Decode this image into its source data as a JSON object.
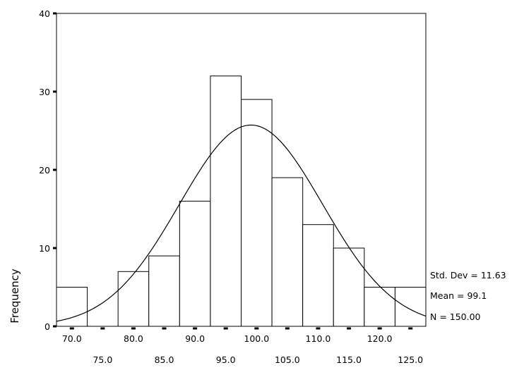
{
  "chart_data": {
    "type": "bar",
    "subtype": "histogram-with-normal-curve",
    "title": "",
    "xlabel": "",
    "ylabel": "Frequency",
    "ylim": [
      0,
      40
    ],
    "xlim": [
      67.5,
      127.5
    ],
    "bin_width": 5,
    "y_ticks": [
      "0",
      "10",
      "20",
      "30",
      "40"
    ],
    "x_ticks_row1": [
      "70.0",
      "80.0",
      "90.0",
      "100.0",
      "110.0",
      "120.0"
    ],
    "x_ticks_row2": [
      "75.0",
      "85.0",
      "95.0",
      "105.0",
      "115.0",
      "125.0"
    ],
    "bins": [
      {
        "center": 70,
        "value": 5
      },
      {
        "center": 75,
        "value": 0
      },
      {
        "center": 80,
        "value": 7
      },
      {
        "center": 85,
        "value": 9
      },
      {
        "center": 90,
        "value": 16
      },
      {
        "center": 95,
        "value": 32
      },
      {
        "center": 100,
        "value": 29
      },
      {
        "center": 105,
        "value": 19
      },
      {
        "center": 110,
        "value": 13
      },
      {
        "center": 115,
        "value": 10
      },
      {
        "center": 120,
        "value": 5
      },
      {
        "center": 125,
        "value": 5
      }
    ],
    "normal_curve": {
      "mean": 99.1,
      "std_dev": 11.63,
      "n": 150
    },
    "stats": {
      "std_dev_label": "Std. Dev = 11.63",
      "mean_label": "Mean = 99.1",
      "n_label": "N = 150.00"
    },
    "grid": false,
    "legend": "none"
  }
}
